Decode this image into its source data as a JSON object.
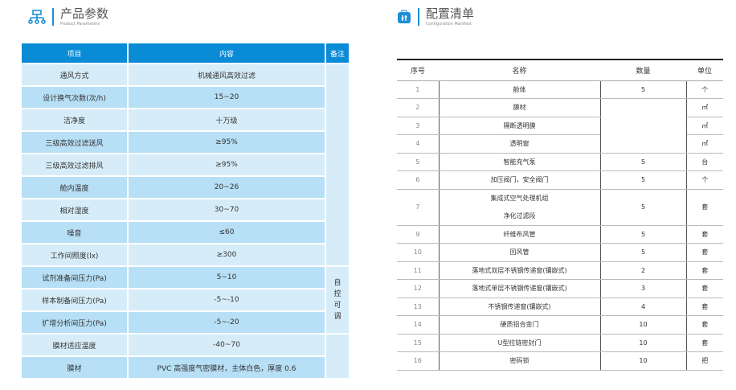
{
  "left": {
    "title": "产品参数",
    "subtitle": "Product Parameters",
    "headers": [
      "项目",
      "内容",
      "备注"
    ],
    "rows": [
      [
        "通风方式",
        "机械通风高效过滤"
      ],
      [
        "设计换气次数(次/h)",
        "15~20"
      ],
      [
        "洁净度",
        "十万级"
      ],
      [
        "三级高效过滤送风",
        "≥95%"
      ],
      [
        "三级高效过滤排风",
        "≥95%"
      ],
      [
        "舱内温度",
        "20~26"
      ],
      [
        "相对湿度",
        "30~70"
      ],
      [
        "噪音",
        "≤60"
      ],
      [
        "工作间照度(lx)",
        "≥300"
      ],
      [
        "试剂准备间压力(Pa)",
        "5~10"
      ],
      [
        "样本制备间压力(Pa)",
        "-5~-10"
      ],
      [
        "扩增分析间压力(Pa)",
        "-5~-20"
      ],
      [
        "膜材适应温度",
        "-40~70"
      ],
      [
        "膜材",
        "PVC 高强度气密膜材，主体白色，厚度 0.6"
      ]
    ],
    "note": "自控可调"
  },
  "right": {
    "title": "配置清单",
    "subtitle": "Configuration Manifest",
    "headers": [
      "序号",
      "名称",
      "数量",
      "单位"
    ],
    "rows": [
      [
        "1",
        "舱体",
        "5",
        "个"
      ],
      [
        "2",
        "膜材",
        "",
        "㎡"
      ],
      [
        "3",
        "隔断透明膜",
        "",
        "㎡"
      ],
      [
        "4",
        "透明窗",
        "",
        "㎡"
      ],
      [
        "5",
        "智能充气泵",
        "5",
        "台"
      ],
      [
        "6",
        "加压阀门，安全阀门",
        "5",
        "个"
      ],
      [
        "7",
        "集成式空气处理机组",
        "5",
        "套"
      ],
      [
        "9",
        "纤维布风管",
        "5",
        "套"
      ],
      [
        "10",
        "回风管",
        "5",
        "套"
      ],
      [
        "11",
        "落地式双层不锈钢传递窗(镶嵌式)",
        "2",
        "套"
      ],
      [
        "12",
        "落地式单层不锈钢传递窗(镶嵌式)",
        "3",
        "套"
      ],
      [
        "13",
        "不锈钢传递窗(镶嵌式)",
        "4",
        "套"
      ],
      [
        "14",
        "硬质铝合金门",
        "10",
        "套"
      ],
      [
        "15",
        "U型拉链密封门",
        "10",
        "套"
      ],
      [
        "16",
        "密码锁",
        "10",
        "把"
      ]
    ],
    "row7_line2": "净化过滤段"
  },
  "colors": {
    "accent": "#0a8bd6",
    "light": "#d6edf9",
    "mid": "#b7dff5"
  }
}
